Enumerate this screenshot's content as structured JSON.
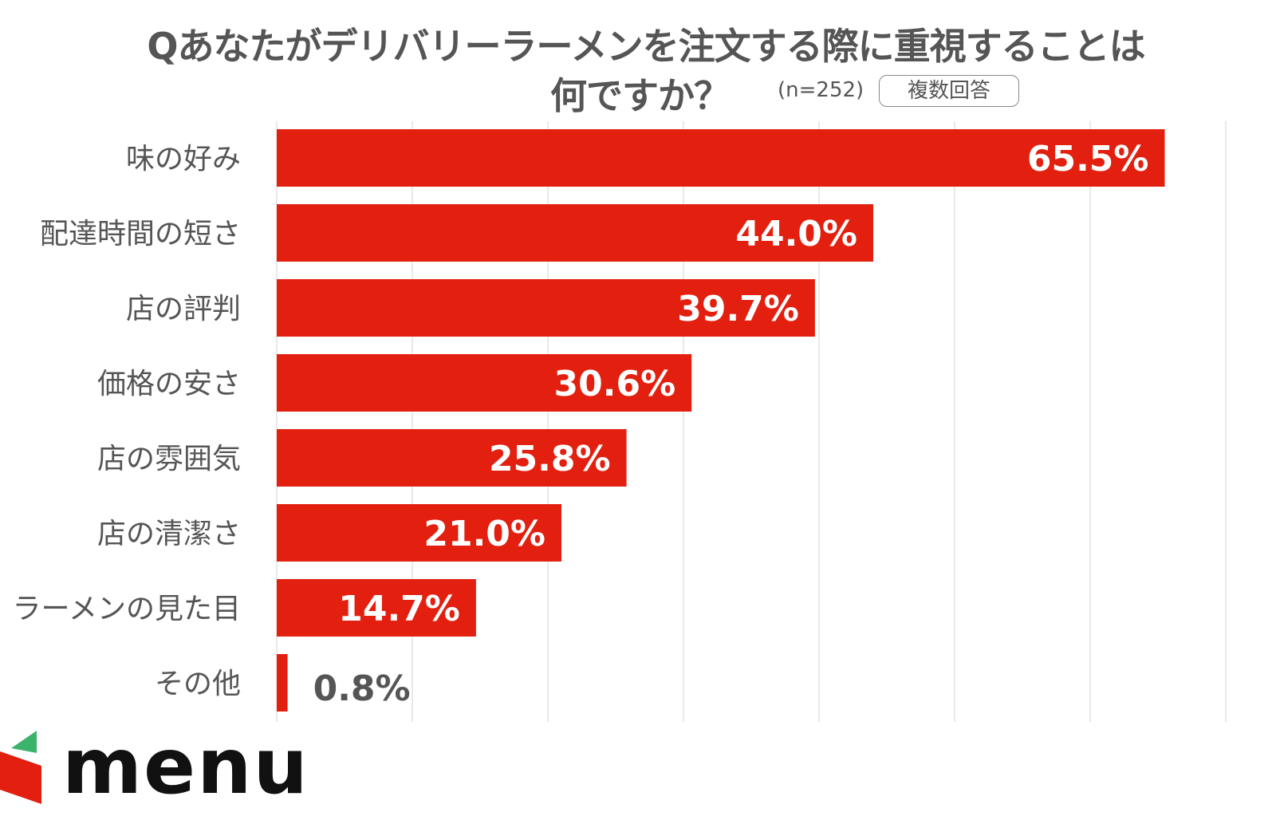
{
  "chart_data": {
    "type": "bar",
    "orientation": "horizontal",
    "title_line1": "Qあなたがデリバリーラーメンを注文する際に重視することは",
    "title_line2": "何ですか？",
    "sample_size": "(n=252)",
    "badge": "複数回答",
    "categories": [
      "味の好み",
      "配達時間の短さ",
      "店の評判",
      "価格の安さ",
      "店の雰囲気",
      "店の清潔さ",
      "ラーメンの見た目",
      "その他"
    ],
    "values": [
      65.5,
      44.0,
      39.7,
      30.6,
      25.8,
      21.0,
      14.7,
      0.8
    ],
    "value_labels": [
      "65.5%",
      "44.0%",
      "39.7%",
      "30.6%",
      "25.8%",
      "21.0%",
      "14.7%",
      "0.8%"
    ],
    "xlim": [
      0,
      70
    ],
    "grid_step": 10,
    "grid": true,
    "bar_color": "#e3200f",
    "xlabel": "",
    "ylabel": ""
  },
  "logo": {
    "text": "menu"
  }
}
